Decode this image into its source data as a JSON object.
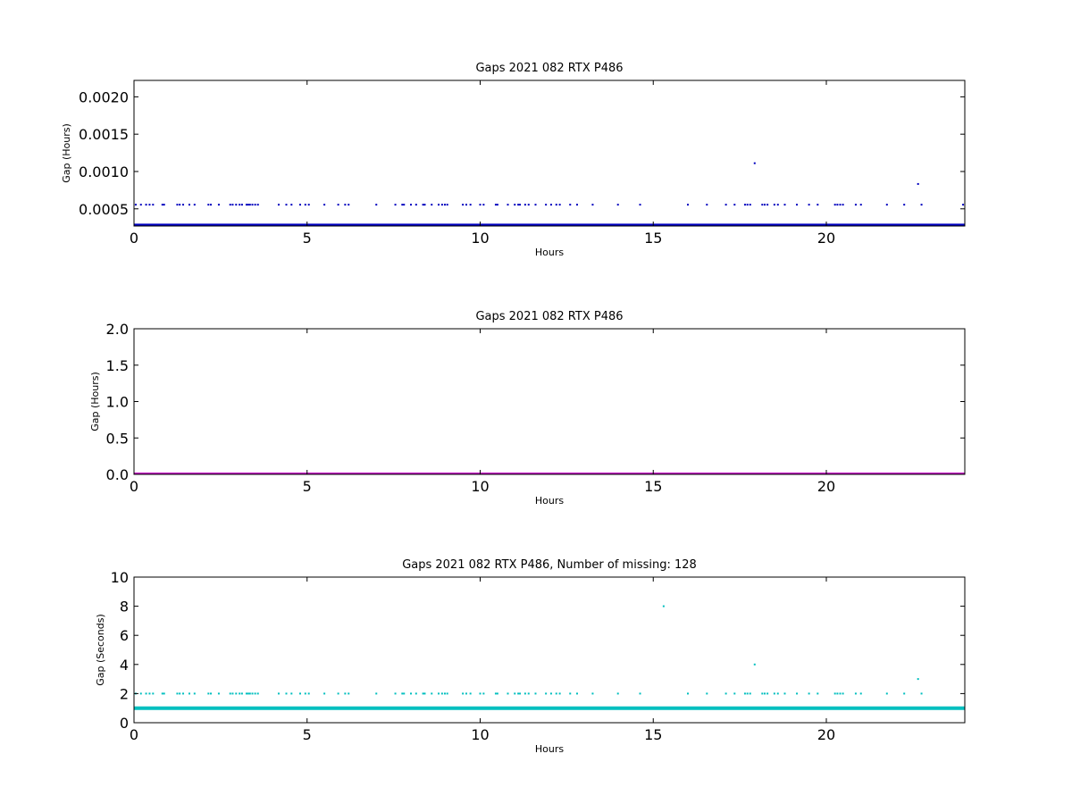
{
  "chart_data": [
    {
      "type": "scatter",
      "title": "Gaps 2021 082 RTX  P486",
      "xlabel": "Hours",
      "ylabel": "Gap (Hours)",
      "xlim": [
        0,
        24
      ],
      "ylim": [
        0.00027,
        0.00222
      ],
      "xticks": [
        0,
        5,
        10,
        15,
        20
      ],
      "yticks": [
        0.0005,
        0.001,
        0.0015,
        0.002
      ],
      "ytick_labels": [
        "0.0005",
        "0.0010",
        "0.0015",
        "0.0020"
      ],
      "grid": false,
      "color": "#0000bf",
      "series": [
        {
          "points": [
            [
              0.05,
              0.000556
            ],
            [
              0.2,
              0.000556
            ],
            [
              0.35,
              0.000556
            ],
            [
              0.45,
              0.000556
            ],
            [
              0.55,
              0.000556
            ],
            [
              0.82,
              0.000556
            ],
            [
              0.87,
              0.000556
            ],
            [
              1.25,
              0.000556
            ],
            [
              1.32,
              0.000556
            ],
            [
              1.42,
              0.000556
            ],
            [
              1.6,
              0.000556
            ],
            [
              1.75,
              0.000556
            ],
            [
              2.15,
              0.000556
            ],
            [
              2.22,
              0.000556
            ],
            [
              2.45,
              0.000556
            ],
            [
              2.78,
              0.000556
            ],
            [
              2.85,
              0.000556
            ],
            [
              2.95,
              0.000556
            ],
            [
              3.05,
              0.000556
            ],
            [
              3.12,
              0.000556
            ],
            [
              3.25,
              0.000556
            ],
            [
              3.3,
              0.000556
            ],
            [
              3.35,
              0.000556
            ],
            [
              3.42,
              0.000556
            ],
            [
              3.5,
              0.000556
            ],
            [
              3.58,
              0.000556
            ],
            [
              4.18,
              0.000556
            ],
            [
              4.4,
              0.000556
            ],
            [
              4.55,
              0.000556
            ],
            [
              4.8,
              0.000556
            ],
            [
              4.95,
              0.000556
            ],
            [
              5.05,
              0.000556
            ],
            [
              5.5,
              0.000556
            ],
            [
              5.9,
              0.000556
            ],
            [
              6.1,
              0.000556
            ],
            [
              6.2,
              0.000556
            ],
            [
              7.0,
              0.000556
            ],
            [
              7.55,
              0.000556
            ],
            [
              7.75,
              0.000556
            ],
            [
              7.8,
              0.000556
            ],
            [
              8.0,
              0.000556
            ],
            [
              8.15,
              0.000556
            ],
            [
              8.35,
              0.000556
            ],
            [
              8.4,
              0.000556
            ],
            [
              8.6,
              0.000556
            ],
            [
              8.8,
              0.000556
            ],
            [
              8.9,
              0.000556
            ],
            [
              8.98,
              0.000556
            ],
            [
              9.05,
              0.000556
            ],
            [
              9.5,
              0.000556
            ],
            [
              9.6,
              0.000556
            ],
            [
              9.72,
              0.000556
            ],
            [
              10.0,
              0.000556
            ],
            [
              10.1,
              0.000556
            ],
            [
              10.45,
              0.000556
            ],
            [
              10.5,
              0.000556
            ],
            [
              10.8,
              0.000556
            ],
            [
              11.0,
              0.000556
            ],
            [
              11.1,
              0.000556
            ],
            [
              11.15,
              0.000556
            ],
            [
              11.3,
              0.000556
            ],
            [
              11.4,
              0.000556
            ],
            [
              11.6,
              0.000556
            ],
            [
              11.9,
              0.000556
            ],
            [
              12.05,
              0.000556
            ],
            [
              12.2,
              0.000556
            ],
            [
              12.3,
              0.000556
            ],
            [
              12.6,
              0.000556
            ],
            [
              12.8,
              0.000556
            ],
            [
              13.25,
              0.000556
            ],
            [
              13.98,
              0.000556
            ],
            [
              14.62,
              0.000556
            ],
            [
              16.0,
              0.000556
            ],
            [
              16.55,
              0.000556
            ],
            [
              17.1,
              0.000556
            ],
            [
              17.35,
              0.000556
            ],
            [
              17.65,
              0.000556
            ],
            [
              17.72,
              0.000556
            ],
            [
              17.8,
              0.000556
            ],
            [
              17.93,
              0.001111
            ],
            [
              18.15,
              0.000556
            ],
            [
              18.22,
              0.000556
            ],
            [
              18.3,
              0.000556
            ],
            [
              18.5,
              0.000556
            ],
            [
              18.6,
              0.000556
            ],
            [
              18.8,
              0.000556
            ],
            [
              19.15,
              0.000556
            ],
            [
              19.5,
              0.000556
            ],
            [
              19.75,
              0.000556
            ],
            [
              20.25,
              0.000556
            ],
            [
              20.32,
              0.000556
            ],
            [
              20.4,
              0.000556
            ],
            [
              20.48,
              0.000556
            ],
            [
              20.85,
              0.000556
            ],
            [
              21.0,
              0.000556
            ],
            [
              21.75,
              0.000556
            ],
            [
              22.25,
              0.000556
            ],
            [
              22.65,
              0.000833
            ],
            [
              22.75,
              0.000556
            ],
            [
              23.95,
              0.000556
            ]
          ],
          "baseline": 0.000278
        }
      ]
    },
    {
      "type": "scatter",
      "title": "Gaps 2021 082 RTX  P486",
      "xlabel": "Hours",
      "ylabel": "Gap (Hours)",
      "xlim": [
        0,
        24
      ],
      "ylim": [
        0,
        2.0
      ],
      "xticks": [
        0,
        5,
        10,
        15,
        20
      ],
      "yticks": [
        0.0,
        0.5,
        1.0,
        1.5,
        2.0
      ],
      "ytick_labels": [
        "0.0",
        "0.5",
        "1.0",
        "1.5",
        "2.0"
      ],
      "grid": false,
      "color": "#bf00bf",
      "series": [
        {
          "points": [],
          "baseline": 0.0
        }
      ]
    },
    {
      "type": "scatter",
      "title": "Gaps 2021 082 RTX  P486, Number of missing: 128",
      "xlabel": "Hours",
      "ylabel": "Gap (Seconds)",
      "xlim": [
        0,
        24
      ],
      "ylim": [
        0,
        10
      ],
      "xticks": [
        0,
        5,
        10,
        15,
        20
      ],
      "yticks": [
        0,
        2,
        4,
        6,
        8,
        10
      ],
      "ytick_labels": [
        "0",
        "2",
        "4",
        "6",
        "8",
        "10"
      ],
      "grid": false,
      "color": "#00bfbf",
      "series": [
        {
          "points": [
            [
              0.05,
              2
            ],
            [
              0.2,
              2
            ],
            [
              0.35,
              2
            ],
            [
              0.45,
              2
            ],
            [
              0.55,
              2
            ],
            [
              0.82,
              2
            ],
            [
              0.87,
              2
            ],
            [
              1.25,
              2
            ],
            [
              1.32,
              2
            ],
            [
              1.42,
              2
            ],
            [
              1.6,
              2
            ],
            [
              1.75,
              2
            ],
            [
              2.15,
              2
            ],
            [
              2.22,
              2
            ],
            [
              2.45,
              2
            ],
            [
              2.78,
              2
            ],
            [
              2.85,
              2
            ],
            [
              2.95,
              2
            ],
            [
              3.05,
              2
            ],
            [
              3.12,
              2
            ],
            [
              3.25,
              2
            ],
            [
              3.3,
              2
            ],
            [
              3.35,
              2
            ],
            [
              3.42,
              2
            ],
            [
              3.5,
              2
            ],
            [
              3.58,
              2
            ],
            [
              4.18,
              2
            ],
            [
              4.4,
              2
            ],
            [
              4.55,
              2
            ],
            [
              4.8,
              2
            ],
            [
              4.95,
              2
            ],
            [
              5.05,
              2
            ],
            [
              5.5,
              2
            ],
            [
              5.9,
              2
            ],
            [
              6.1,
              2
            ],
            [
              6.2,
              2
            ],
            [
              7.0,
              2
            ],
            [
              7.55,
              2
            ],
            [
              7.75,
              2
            ],
            [
              7.8,
              2
            ],
            [
              8.0,
              2
            ],
            [
              8.15,
              2
            ],
            [
              8.35,
              2
            ],
            [
              8.4,
              2
            ],
            [
              8.6,
              2
            ],
            [
              8.8,
              2
            ],
            [
              8.9,
              2
            ],
            [
              8.98,
              2
            ],
            [
              9.05,
              2
            ],
            [
              9.5,
              2
            ],
            [
              9.6,
              2
            ],
            [
              9.72,
              2
            ],
            [
              10.0,
              2
            ],
            [
              10.1,
              2
            ],
            [
              10.45,
              2
            ],
            [
              10.5,
              2
            ],
            [
              10.8,
              2
            ],
            [
              11.0,
              2
            ],
            [
              11.1,
              2
            ],
            [
              11.15,
              2
            ],
            [
              11.3,
              2
            ],
            [
              11.4,
              2
            ],
            [
              11.6,
              2
            ],
            [
              11.9,
              2
            ],
            [
              12.05,
              2
            ],
            [
              12.2,
              2
            ],
            [
              12.3,
              2
            ],
            [
              12.6,
              2
            ],
            [
              12.8,
              2
            ],
            [
              13.25,
              2
            ],
            [
              13.98,
              2
            ],
            [
              14.62,
              2
            ],
            [
              15.3,
              8
            ],
            [
              16.0,
              2
            ],
            [
              16.55,
              2
            ],
            [
              17.1,
              2
            ],
            [
              17.35,
              2
            ],
            [
              17.65,
              2
            ],
            [
              17.72,
              2
            ],
            [
              17.8,
              2
            ],
            [
              17.93,
              4
            ],
            [
              18.15,
              2
            ],
            [
              18.22,
              2
            ],
            [
              18.3,
              2
            ],
            [
              18.5,
              2
            ],
            [
              18.6,
              2
            ],
            [
              18.8,
              2
            ],
            [
              19.15,
              2
            ],
            [
              19.5,
              2
            ],
            [
              19.75,
              2
            ],
            [
              20.25,
              2
            ],
            [
              20.32,
              2
            ],
            [
              20.4,
              2
            ],
            [
              20.48,
              2
            ],
            [
              20.85,
              2
            ],
            [
              21.0,
              2
            ],
            [
              21.75,
              2
            ],
            [
              22.25,
              2
            ],
            [
              22.65,
              3
            ],
            [
              22.75,
              2
            ]
          ],
          "baseline": 1
        }
      ]
    }
  ]
}
